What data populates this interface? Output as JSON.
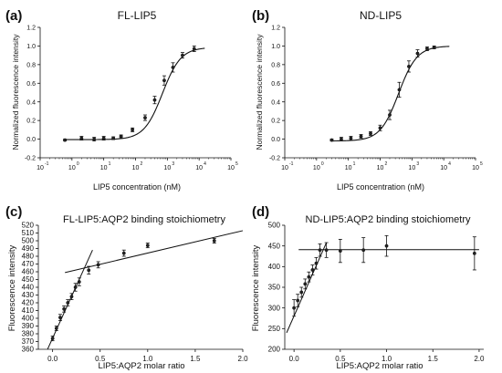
{
  "chart_data": [
    {
      "type": "scatter",
      "panel_label": "(a)",
      "title": "FL-LIP5",
      "xlabel": "LIP5 concentration (nM)",
      "ylabel": "Normalized fluorescence intensity",
      "xscale": "log",
      "xlim": [
        0.1,
        100000
      ],
      "ylim": [
        -0.2,
        1.2
      ],
      "x_ticks": [
        0.1,
        1,
        10,
        100,
        1000,
        10000,
        100000
      ],
      "x_tick_labels": [
        "10",
        "10",
        "10",
        "10",
        "10",
        "10",
        "10"
      ],
      "x_tick_exponents": [
        "-1",
        "0",
        "1",
        "2",
        "3",
        "4",
        "5"
      ],
      "y_ticks": [
        -0.2,
        0.0,
        0.2,
        0.4,
        0.6,
        0.8,
        1.0,
        1.2
      ],
      "y_tick_labels": [
        "-0.2",
        "0.0",
        "0.2",
        "0.4",
        "0.6",
        "0.8",
        "1.0",
        "1.2"
      ],
      "points": [
        {
          "x": 0.6,
          "y": -0.01,
          "err": 0.01
        },
        {
          "x": 2,
          "y": 0.01,
          "err": 0.02
        },
        {
          "x": 5,
          "y": 0.0,
          "err": 0.02
        },
        {
          "x": 10,
          "y": 0.01,
          "err": 0.02
        },
        {
          "x": 20,
          "y": 0.01,
          "err": 0.015
        },
        {
          "x": 35,
          "y": 0.03,
          "err": 0.015
        },
        {
          "x": 80,
          "y": 0.1,
          "err": 0.02
        },
        {
          "x": 200,
          "y": 0.23,
          "err": 0.03
        },
        {
          "x": 400,
          "y": 0.42,
          "err": 0.04
        },
        {
          "x": 800,
          "y": 0.63,
          "err": 0.05
        },
        {
          "x": 1500,
          "y": 0.77,
          "err": 0.05
        },
        {
          "x": 3000,
          "y": 0.9,
          "err": 0.03
        },
        {
          "x": 7000,
          "y": 0.97,
          "err": 0.03
        }
      ],
      "fit": {
        "model": "sigmoid-log",
        "bottom": -0.005,
        "top": 0.985,
        "ec50": 700,
        "hill": 1.5,
        "x_range": [
          0.6,
          15000
        ]
      }
    },
    {
      "type": "scatter",
      "panel_label": "(b)",
      "title": "ND-LIP5",
      "xlabel": "LIP5 concentration (nM)",
      "ylabel": "Normalized fluorescence intensity",
      "xscale": "log",
      "xlim": [
        0.1,
        100000
      ],
      "ylim": [
        -0.2,
        1.2
      ],
      "x_ticks": [
        0.1,
        1,
        10,
        100,
        1000,
        10000,
        100000
      ],
      "x_tick_labels": [
        "10",
        "10",
        "10",
        "10",
        "10",
        "10",
        "10"
      ],
      "x_tick_exponents": [
        "-1",
        "0",
        "1",
        "2",
        "3",
        "4",
        "5"
      ],
      "y_ticks": [
        -0.2,
        0.0,
        0.2,
        0.4,
        0.6,
        0.8,
        1.0,
        1.2
      ],
      "y_tick_labels": [
        "-0.2",
        "0.0",
        "0.2",
        "0.4",
        "0.6",
        "0.8",
        "1.0",
        "1.2"
      ],
      "points": [
        {
          "x": 3,
          "y": -0.01,
          "err": 0.01
        },
        {
          "x": 6,
          "y": 0.0,
          "err": 0.02
        },
        {
          "x": 12,
          "y": 0.01,
          "err": 0.02
        },
        {
          "x": 25,
          "y": 0.03,
          "err": 0.02
        },
        {
          "x": 50,
          "y": 0.06,
          "err": 0.02
        },
        {
          "x": 100,
          "y": 0.12,
          "err": 0.03
        },
        {
          "x": 200,
          "y": 0.26,
          "err": 0.05
        },
        {
          "x": 400,
          "y": 0.53,
          "err": 0.08
        },
        {
          "x": 800,
          "y": 0.78,
          "err": 0.06
        },
        {
          "x": 1500,
          "y": 0.92,
          "err": 0.04
        },
        {
          "x": 3000,
          "y": 0.97,
          "err": 0.02
        },
        {
          "x": 5000,
          "y": 0.985,
          "err": 0.015
        }
      ],
      "fit": {
        "model": "sigmoid-log",
        "bottom": -0.02,
        "top": 1.0,
        "ec50": 380,
        "hill": 1.5,
        "x_range": [
          3,
          15000
        ]
      }
    },
    {
      "type": "scatter",
      "panel_label": "(c)",
      "title": "FL-LIP5:AQP2 binding stoichiometry",
      "xlabel": "LIP5:AQP2 molar ratio",
      "ylabel": "Fluorescence intensity",
      "xlim": [
        -0.15,
        2.0
      ],
      "ylim": [
        360,
        520
      ],
      "x_ticks": [
        0.0,
        0.5,
        1.0,
        1.5,
        2.0
      ],
      "x_tick_labels": [
        "0.0",
        "0.5",
        "1.0",
        "1.5",
        "2.0"
      ],
      "y_ticks": [
        360,
        370,
        380,
        390,
        400,
        410,
        420,
        430,
        440,
        450,
        460,
        470,
        480,
        490,
        500,
        510,
        520
      ],
      "y_tick_labels": [
        "360",
        "370",
        "380",
        "390",
        "400",
        "410",
        "420",
        "430",
        "440",
        "450",
        "460",
        "470",
        "480",
        "490",
        "500",
        "510",
        "520"
      ],
      "points": [
        {
          "x": 0.0,
          "y": 374,
          "err": 3
        },
        {
          "x": 0.04,
          "y": 387,
          "err": 3
        },
        {
          "x": 0.08,
          "y": 401,
          "err": 4
        },
        {
          "x": 0.12,
          "y": 412,
          "err": 4
        },
        {
          "x": 0.16,
          "y": 420,
          "err": 4
        },
        {
          "x": 0.2,
          "y": 428,
          "err": 4
        },
        {
          "x": 0.24,
          "y": 440,
          "err": 5
        },
        {
          "x": 0.28,
          "y": 447,
          "err": 5
        },
        {
          "x": 0.38,
          "y": 462,
          "err": 5
        },
        {
          "x": 0.48,
          "y": 469,
          "err": 4
        },
        {
          "x": 0.75,
          "y": 484,
          "err": 4
        },
        {
          "x": 1.0,
          "y": 494,
          "err": 3
        },
        {
          "x": 1.7,
          "y": 500,
          "err": 3
        }
      ],
      "fit_lines": [
        {
          "x1": -0.09,
          "y1": 350,
          "x2": 0.42,
          "y2": 488
        },
        {
          "x1": 0.13,
          "y1": 459,
          "x2": 2.0,
          "y2": 513
        }
      ]
    },
    {
      "type": "scatter",
      "panel_label": "(d)",
      "title": "ND-LIP5:AQP2 binding stoichiometry",
      "xlabel": "LIP5:AQP2 molar ratio",
      "ylabel": "Fluorescence intensity",
      "xlim": [
        -0.1,
        2.05
      ],
      "ylim": [
        200,
        500
      ],
      "x_ticks": [
        0.0,
        0.5,
        1.0,
        1.5,
        2.0
      ],
      "x_tick_labels": [
        "0.0",
        "0.5",
        "1.0",
        "1.5",
        "2.0"
      ],
      "y_ticks": [
        200,
        250,
        300,
        350,
        400,
        450,
        500
      ],
      "y_tick_labels": [
        "200",
        "250",
        "300",
        "350",
        "400",
        "450",
        "500"
      ],
      "points": [
        {
          "x": 0.0,
          "y": 300,
          "err": 20
        },
        {
          "x": 0.04,
          "y": 318,
          "err": 15
        },
        {
          "x": 0.08,
          "y": 338,
          "err": 12
        },
        {
          "x": 0.12,
          "y": 358,
          "err": 12
        },
        {
          "x": 0.16,
          "y": 375,
          "err": 12
        },
        {
          "x": 0.2,
          "y": 392,
          "err": 12
        },
        {
          "x": 0.24,
          "y": 408,
          "err": 14
        },
        {
          "x": 0.28,
          "y": 440,
          "err": 15
        },
        {
          "x": 0.35,
          "y": 440,
          "err": 18
        },
        {
          "x": 0.5,
          "y": 438,
          "err": 28
        },
        {
          "x": 0.75,
          "y": 440,
          "err": 30
        },
        {
          "x": 1.0,
          "y": 450,
          "err": 25
        },
        {
          "x": 1.95,
          "y": 432,
          "err": 40
        }
      ],
      "fit_lines": [
        {
          "x1": -0.08,
          "y1": 240,
          "x2": 0.35,
          "y2": 458
        },
        {
          "x1": 0.05,
          "y1": 441,
          "x2": 2.0,
          "y2": 441
        }
      ]
    }
  ]
}
